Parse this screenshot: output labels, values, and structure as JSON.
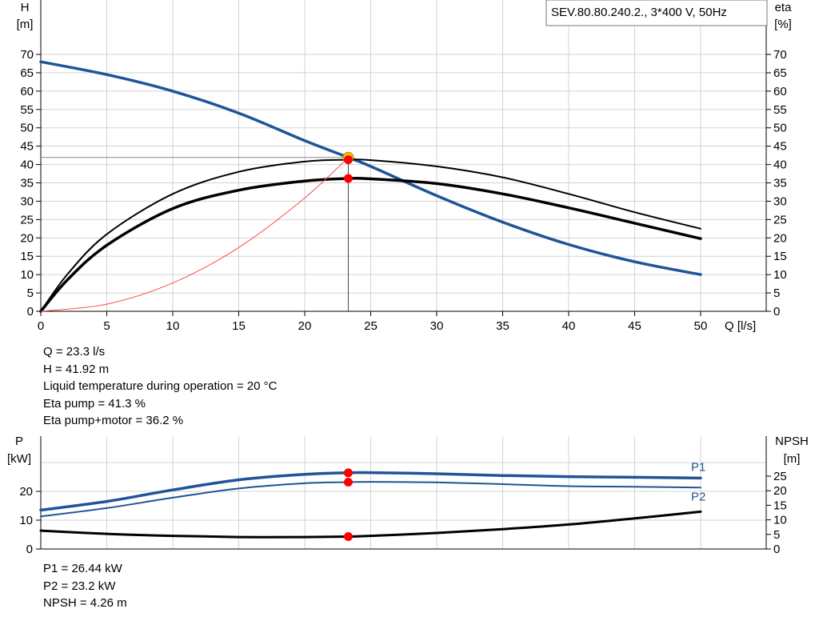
{
  "chart_data": [
    {
      "type": "line",
      "title": "SEV.80.80.240.2., 3*400 V, 50Hz",
      "xlabel": "Q [l/s]",
      "ylabel_left": [
        "H",
        "[m]"
      ],
      "ylabel_right": [
        "eta",
        "[%]"
      ],
      "xlim": [
        0,
        50
      ],
      "ylim": [
        0,
        70
      ],
      "x_ticks": [
        0,
        5,
        10,
        15,
        20,
        25,
        30,
        35,
        40,
        45,
        50
      ],
      "y_ticks": [
        0,
        5,
        10,
        15,
        20,
        25,
        30,
        35,
        40,
        45,
        50,
        55,
        60,
        65,
        70
      ],
      "grid": true,
      "series": [
        {
          "key": "H",
          "color": "#1f5496",
          "width": 3.5,
          "x": [
            0,
            5,
            10,
            15,
            20,
            23.3,
            25,
            30,
            35,
            40,
            45,
            50
          ],
          "y": [
            68,
            64.5,
            60,
            54,
            46.5,
            41.92,
            39.5,
            31.5,
            24.3,
            18.2,
            13.5,
            10
          ]
        },
        {
          "key": "eta_pump",
          "color": "#000000",
          "width": 2,
          "x": [
            0,
            2,
            5,
            10,
            15,
            20,
            23.3,
            25,
            30,
            35,
            40,
            45,
            50
          ],
          "y": [
            0,
            10,
            21,
            32,
            38,
            40.8,
            41.3,
            41.2,
            39.5,
            36.5,
            32,
            27,
            22.5
          ]
        },
        {
          "key": "eta_pump_motor",
          "color": "#000000",
          "width": 3.5,
          "x": [
            0,
            2,
            5,
            10,
            15,
            20,
            23.3,
            25,
            30,
            35,
            40,
            45,
            50
          ],
          "y": [
            0,
            8.5,
            18,
            28,
            33,
            35.5,
            36.2,
            36.1,
            34.8,
            32,
            28.2,
            24,
            19.8
          ]
        },
        {
          "key": "system",
          "color": "#ff4a4a",
          "width": 1,
          "x": [
            0,
            5,
            10,
            15,
            20,
            23.3
          ],
          "y": [
            0,
            1.93,
            7.72,
            17.37,
            30.88,
            41.92
          ]
        }
      ],
      "operating_point": {
        "Q": 23.3,
        "H": 41.92,
        "eta_pump": 41.3,
        "eta_pump_motor": 36.2
      }
    },
    {
      "type": "line",
      "ylabel_left": [
        "P",
        "[kW]"
      ],
      "ylabel_right": [
        "NPSH",
        "[m]"
      ],
      "xlim": [
        0,
        50
      ],
      "ylim": [
        0,
        30
      ],
      "y_ticks_left": [
        0,
        10,
        20
      ],
      "y_ticks_right": [
        0,
        5,
        10,
        15,
        20,
        25
      ],
      "grid": true,
      "series": [
        {
          "name": "P1",
          "color": "#1f5496",
          "width": 3.5,
          "x": [
            0,
            5,
            10,
            15,
            20,
            23.3,
            25,
            30,
            35,
            40,
            45,
            50
          ],
          "y": [
            13.5,
            16.5,
            20.5,
            24,
            25.9,
            26.44,
            26.5,
            26.1,
            25.5,
            25.1,
            24.9,
            24.6
          ]
        },
        {
          "name": "P2",
          "color": "#1f5496",
          "width": 2,
          "x": [
            0,
            5,
            10,
            15,
            20,
            23.3,
            25,
            30,
            35,
            40,
            45,
            50
          ],
          "y": [
            11.3,
            14.2,
            17.8,
            21,
            22.8,
            23.2,
            23.3,
            23.1,
            22.5,
            21.8,
            21.6,
            21.3
          ]
        },
        {
          "key": "NPSH",
          "color": "#000000",
          "width": 3,
          "x": [
            0,
            5,
            10,
            15,
            20,
            23.3,
            25,
            30,
            35,
            40,
            45,
            50
          ],
          "y": [
            6.3,
            5.2,
            4.5,
            4.1,
            4.1,
            4.26,
            4.5,
            5.5,
            6.8,
            8.4,
            10.5,
            12.8
          ]
        }
      ],
      "operating_point": {
        "Q": 23.3,
        "P1": 26.44,
        "P2": 23.2,
        "NPSH": 4.26
      }
    }
  ],
  "readouts_top": [
    "Q = 23.3 l/s",
    "H = 41.92 m",
    "Liquid temperature during operation = 20 °C",
    "Eta pump = 41.3 %",
    "Eta pump+motor = 36.2 %"
  ],
  "readouts_bottom": [
    "P1 = 26.44 kW",
    "P2 = 23.2 kW",
    "NPSH = 4.26 m"
  ],
  "colors": {
    "grid": "#d3d3d3",
    "marker": "#ff0000",
    "axis": "#000000"
  }
}
